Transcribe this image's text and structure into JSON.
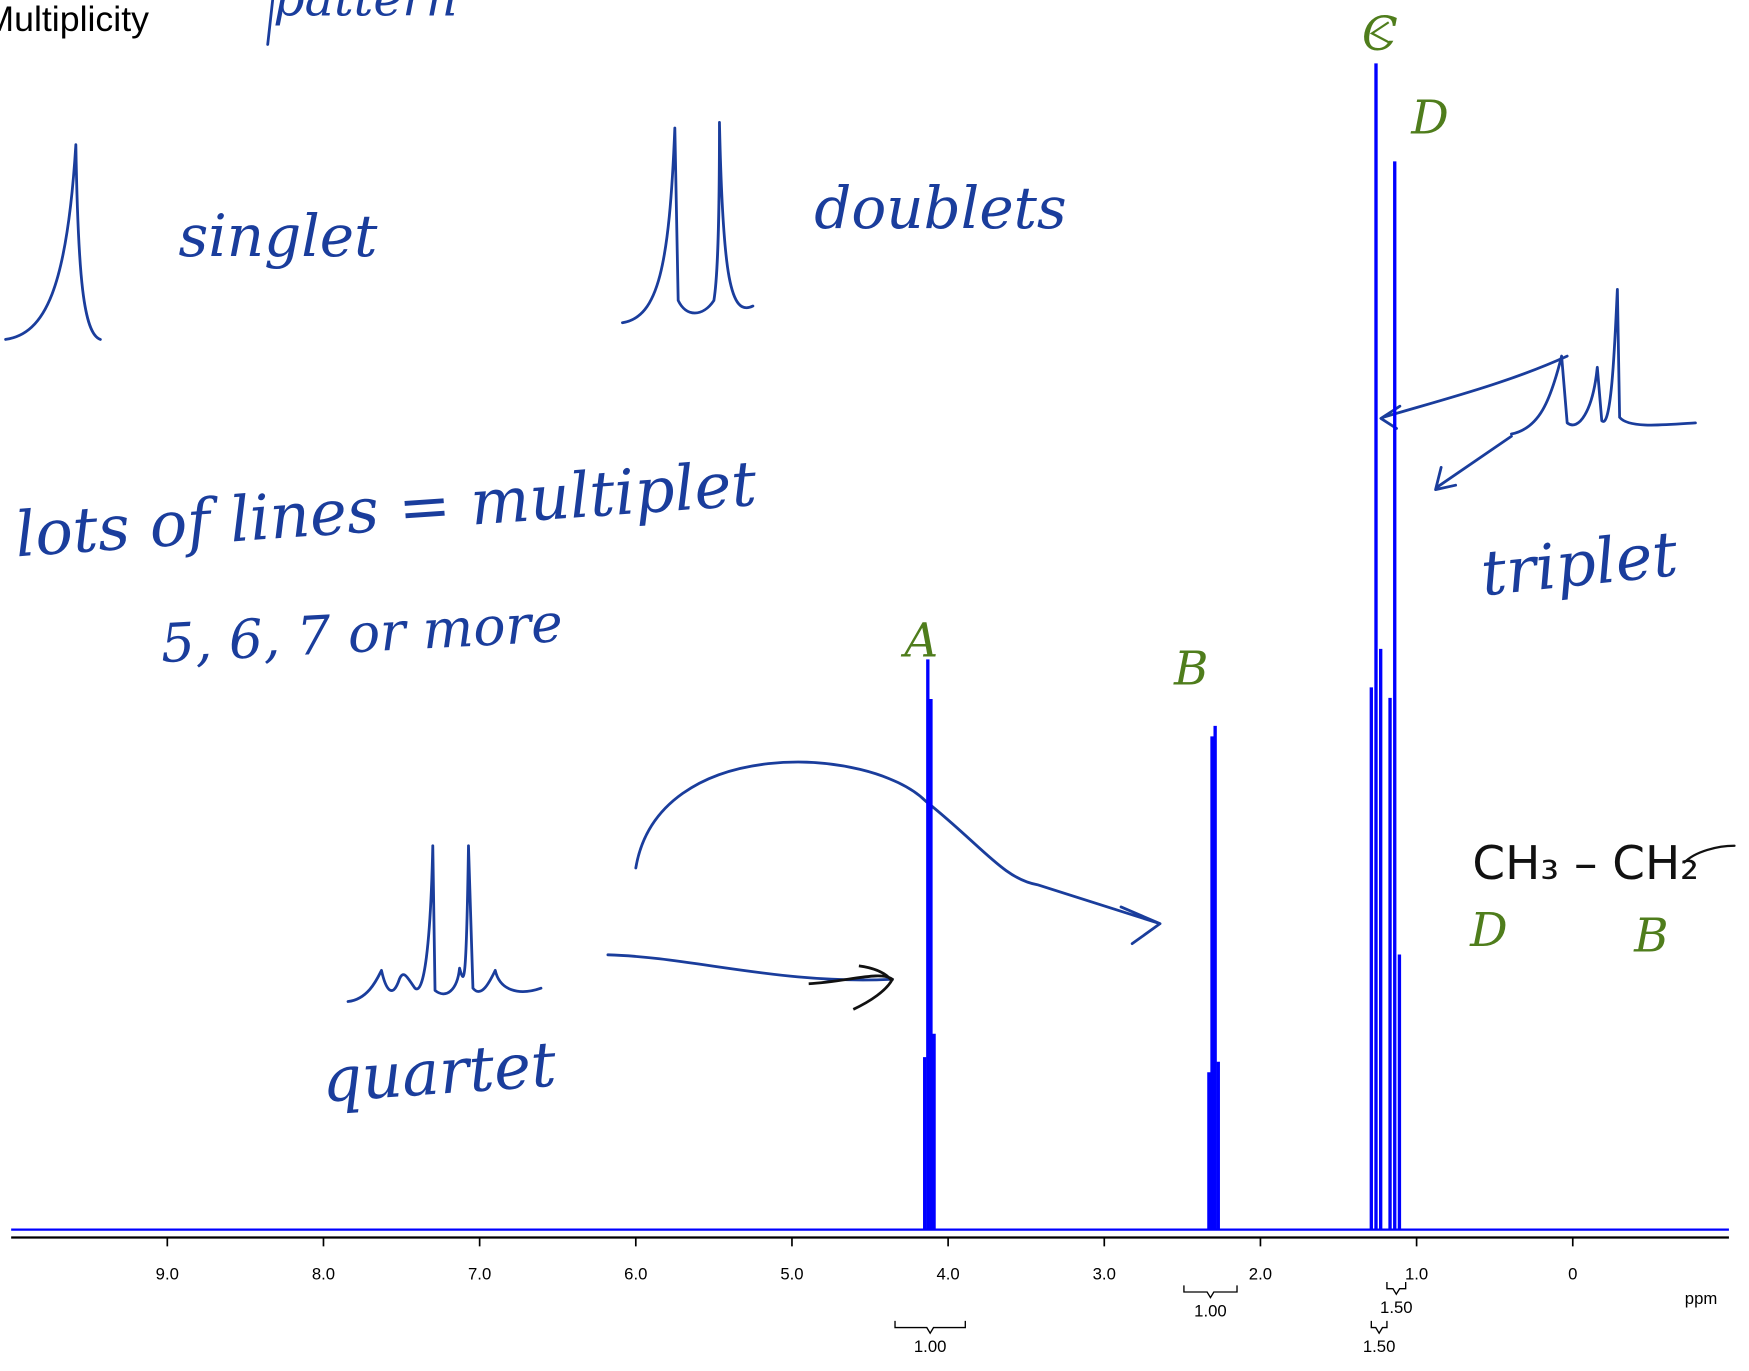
{
  "header": {
    "title": "Multiplicity",
    "handwritten_title": "pattern"
  },
  "annotations": {
    "singlet": "singlet",
    "doublets": "doublets",
    "multiplet": "lots of lines = multiplet",
    "multiplet_note": "5, 6, 7 or more",
    "quartet": "quartet",
    "triplet": "triplet",
    "structure": "CH₃ – CH₂",
    "structure_label_1": "D",
    "structure_label_2": "B"
  },
  "chart_data": {
    "type": "nmr",
    "xlim": [
      10,
      -1
    ],
    "xticks": [
      {
        "value": 9,
        "label": "9.0"
      },
      {
        "value": 8,
        "label": "8.0"
      },
      {
        "value": 7,
        "label": "7.0"
      },
      {
        "value": 6,
        "label": "6.0"
      },
      {
        "value": 5,
        "label": "5.0"
      },
      {
        "value": 4,
        "label": "4.0"
      },
      {
        "value": 3,
        "label": "3.0"
      },
      {
        "value": 2,
        "label": "2.0"
      },
      {
        "value": 1,
        "label": "1.0"
      },
      0
    ],
    "xlabel": "ppm",
    "color": "#0000ff",
    "series": [
      {
        "name": "A",
        "x": [
          4.15,
          4.13,
          4.11,
          4.09
        ],
        "values": [
          14.8,
          48.9,
          45.5,
          16.8
        ]
      },
      {
        "name": "B",
        "x": [
          2.33,
          2.31,
          2.29,
          2.27
        ],
        "values": [
          13.5,
          42.3,
          43.2,
          14.4
        ]
      },
      {
        "name": "C",
        "x": [
          1.29,
          1.26,
          1.23
        ],
        "values": [
          46.5,
          100,
          49.8
        ]
      },
      {
        "name": "D",
        "x": [
          1.17,
          1.14,
          1.11
        ],
        "values": [
          45.6,
          91.6,
          23.6
        ]
      }
    ],
    "integrals": [
      {
        "range": [
          4.34,
          3.89
        ],
        "value": 1,
        "label": "1.00"
      },
      {
        "range": [
          2.49,
          2.15
        ],
        "value": 1,
        "label": "1.00"
      },
      {
        "range": [
          1.19,
          1.07
        ],
        "value": 1.5,
        "label": "1.50"
      },
      {
        "range": [
          1.29,
          1.19
        ],
        "value": 1.5,
        "label": "1.50"
      }
    ]
  }
}
